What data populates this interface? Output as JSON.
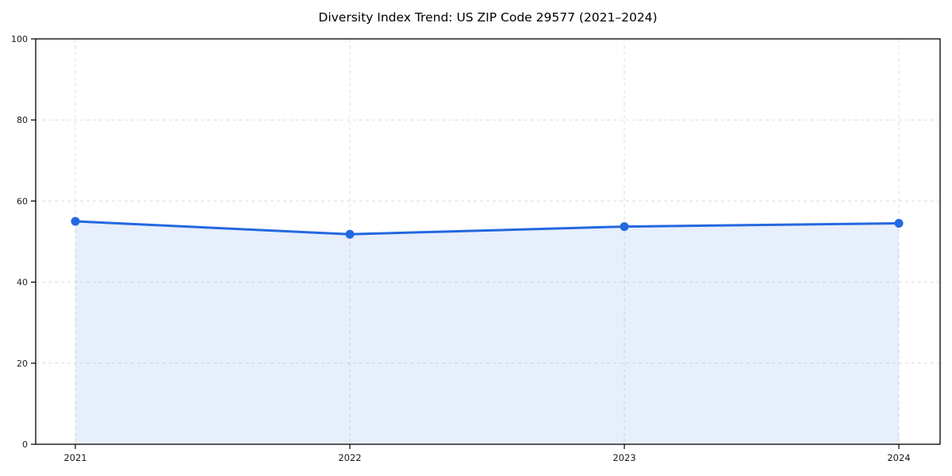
{
  "chart_data": {
    "type": "area",
    "title": "Diversity Index Trend: US ZIP Code 29577 (2021–2024)",
    "x": [
      "2021",
      "2022",
      "2023",
      "2024"
    ],
    "series": [
      {
        "name": "Diversity Index",
        "values": [
          55.0,
          51.8,
          53.7,
          54.5
        ]
      }
    ],
    "ylim": [
      0,
      100
    ],
    "yticks": [
      0,
      20,
      40,
      60,
      80,
      100
    ],
    "xlabel": "",
    "ylabel": "",
    "legend": "none",
    "grid": "dashed-both",
    "line_color": "#2368e0",
    "marker": "circle",
    "fill_opacity": 0.11,
    "grid_color": "#dcdcdc",
    "axis_color": "#000000",
    "tick_text_color": "#1a1a1a"
  }
}
